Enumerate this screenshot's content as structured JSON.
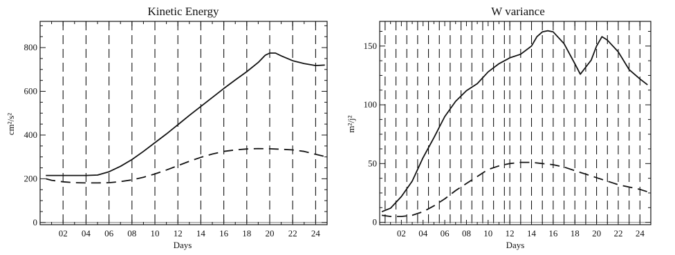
{
  "chart_data": [
    {
      "type": "line",
      "title": "Kinetic Energy",
      "xlabel": "Days",
      "ylabel": "cm²/s²",
      "xlim": [
        0,
        25
      ],
      "ylim": [
        -10,
        920
      ],
      "x_ticks": [
        2,
        4,
        6,
        8,
        10,
        12,
        14,
        16,
        18,
        20,
        22,
        24
      ],
      "x_tick_labels": [
        "02",
        "04",
        "06",
        "08",
        "10",
        "12",
        "14",
        "16",
        "18",
        "20",
        "22",
        "24"
      ],
      "y_ticks": [
        0,
        200,
        400,
        600,
        800
      ],
      "y_tick_labels": [
        "0",
        "200",
        "400",
        "600",
        "800"
      ],
      "vertical_dashed_lines": [
        2,
        4,
        6,
        8,
        10,
        12,
        14,
        16,
        18,
        20,
        22,
        24
      ],
      "series": [
        {
          "style": "solid",
          "x": [
            0.5,
            1,
            2,
            3,
            4,
            5,
            6,
            7,
            8,
            9,
            10,
            11,
            12,
            13,
            14,
            15,
            16,
            17,
            18,
            19,
            19.6,
            20,
            20.5,
            21,
            22,
            23,
            24,
            24.8
          ],
          "y": [
            215,
            215,
            215,
            215,
            215,
            217,
            232,
            257,
            288,
            325,
            365,
            405,
            447,
            490,
            531,
            572,
            613,
            652,
            690,
            732,
            765,
            775,
            775,
            762,
            740,
            727,
            718,
            720
          ]
        },
        {
          "style": "dashed",
          "x": [
            0.5,
            1,
            2,
            3,
            4,
            5,
            6,
            7,
            8,
            9,
            10,
            11,
            12,
            13,
            14,
            15,
            16,
            17,
            18,
            19,
            20,
            21,
            22,
            23,
            24,
            24.8
          ],
          "y": [
            200,
            193,
            186,
            182,
            181,
            181,
            182,
            187,
            195,
            207,
            222,
            240,
            260,
            280,
            298,
            313,
            325,
            332,
            336,
            338,
            337,
            335,
            332,
            325,
            312,
            302
          ]
        }
      ]
    },
    {
      "type": "line",
      "title": "W variance",
      "xlabel": "Days",
      "ylabel": "m²/j²",
      "xlim": [
        0,
        25
      ],
      "ylim": [
        -2,
        171
      ],
      "x_ticks": [
        2,
        4,
        6,
        8,
        10,
        12,
        14,
        16,
        18,
        20,
        22,
        24
      ],
      "x_tick_labels": [
        "02",
        "04",
        "06",
        "08",
        "10",
        "12",
        "14",
        "16",
        "18",
        "20",
        "22",
        "24"
      ],
      "y_ticks": [
        0,
        50,
        100,
        150
      ],
      "y_tick_labels": [
        "0",
        "50",
        "100",
        "150"
      ],
      "vertical_dashed_lines": [
        0.5,
        1.5,
        2.5,
        3.5,
        4.5,
        5.5,
        6.5,
        7.5,
        8.5,
        9.5,
        10.5,
        11.5,
        12,
        13,
        14,
        15,
        16,
        17,
        18,
        19,
        20,
        21,
        22,
        23,
        24
      ],
      "series": [
        {
          "style": "solid",
          "x": [
            0.2,
            1,
            2,
            3,
            4,
            5,
            6,
            7,
            8,
            9,
            10,
            11,
            12,
            13,
            14,
            14.5,
            15,
            15.5,
            16,
            17,
            18,
            18.5,
            19,
            19.5,
            20,
            20.5,
            21,
            22,
            23,
            24,
            24.7
          ],
          "y": [
            9,
            12,
            22,
            35,
            55,
            72,
            90,
            103,
            112,
            118,
            128,
            135,
            140,
            143,
            150,
            158,
            162,
            163,
            162,
            152,
            135,
            126,
            132,
            138,
            150,
            158,
            155,
            145,
            130,
            122,
            117
          ]
        },
        {
          "style": "dashed",
          "x": [
            0.2,
            1,
            2,
            3,
            4,
            5,
            6,
            7,
            8,
            9,
            10,
            11,
            12,
            13,
            14,
            15,
            16,
            17,
            18,
            19,
            20,
            21,
            22,
            23,
            24,
            24.7
          ],
          "y": [
            6,
            5,
            5,
            6,
            9,
            14,
            20,
            27,
            33,
            39,
            45,
            48,
            50,
            51,
            51,
            50,
            49,
            47,
            44,
            41,
            38,
            35,
            32,
            30,
            28,
            26
          ]
        }
      ]
    }
  ]
}
